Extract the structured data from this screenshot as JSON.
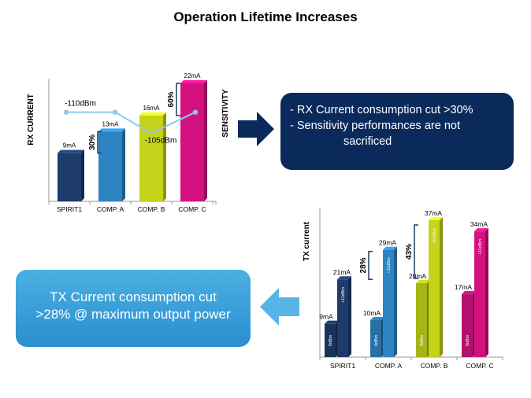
{
  "title": "Operation Lifetime Increases",
  "rx_callout": {
    "line1": "- RX Current consumption cut >30%",
    "line2": "- Sensitivity performances are not",
    "line3": "sacrificed"
  },
  "tx_callout": {
    "line1": "TX Current consumption cut",
    "line2": ">28% @ maximum output power"
  },
  "colors": {
    "spirit1": "#1f3b6b",
    "comp_a": "#2e84c2",
    "comp_b": "#c5d41a",
    "comp_c": "#d3127f",
    "line": "#8ec8ee",
    "rx_callout": "#0a2a5c",
    "tx_callout": "#3aa0dc"
  },
  "chart_data": [
    {
      "type": "bar",
      "title": "",
      "ylabel": "RX CURRENT",
      "y2label": "SENSITIVITY",
      "categories": [
        "SPIRIT1",
        "COMP. A",
        "COMP. B",
        "COMP. C"
      ],
      "values": [
        9,
        13,
        16,
        22
      ],
      "value_labels": [
        "9mA",
        "13mA",
        "16mA",
        "22mA"
      ],
      "ylim": [
        0,
        22
      ],
      "line_series": {
        "name": "Sensitivity",
        "values": [
          -110,
          -110,
          -105,
          -110
        ],
        "labels": [
          "-110dBm",
          "",
          "-105dBm",
          ""
        ],
        "ylim": [
          -100,
          -112
        ]
      },
      "annotations": [
        "30%",
        "60%"
      ]
    },
    {
      "type": "bar",
      "ylabel": "TX current",
      "categories": [
        "SPIRIT1",
        "COMP. A",
        "COMP. B",
        "COMP. C"
      ],
      "series": [
        {
          "name": "0dBm",
          "values": [
            9,
            10,
            20,
            17
          ],
          "labels": [
            "9mA",
            "10mA",
            "20mA",
            "17mA"
          ]
        },
        {
          "name": "+11dBm",
          "values": [
            21,
            29,
            37,
            34
          ],
          "labels": [
            "21mA",
            "29mA",
            "37mA",
            "34mA"
          ]
        }
      ],
      "series_tag_low": "0dBm",
      "series_tag_high": "+11dBm",
      "ylim": [
        0,
        37
      ],
      "annotations": [
        "28%",
        "43%"
      ]
    }
  ]
}
